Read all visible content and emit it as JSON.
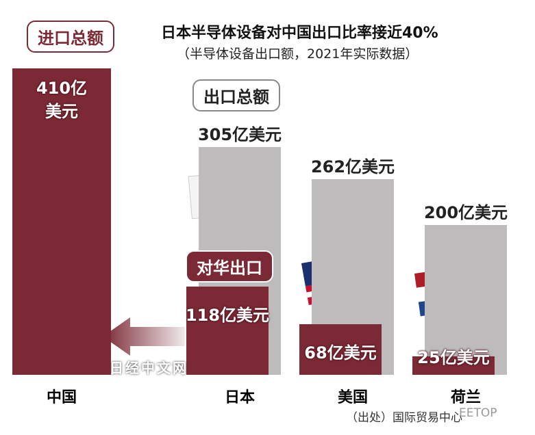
{
  "chart_data": {
    "type": "bar",
    "title": "日本半导体设备对中国出口比率接近40%",
    "subtitle": "（半导体设备出口额，2021年实际数据）",
    "categories": [
      "中国",
      "日本",
      "美国",
      "荷兰"
    ],
    "series": [
      {
        "name": "进口总额",
        "color": "#7b2a35",
        "values": [
          410,
          null,
          null,
          null
        ],
        "value_labels": [
          "410亿美元",
          null,
          null,
          null
        ]
      },
      {
        "name": "出口总额",
        "color": "#bdbbbb",
        "values": [
          null,
          305,
          262,
          200
        ],
        "value_labels": [
          null,
          "305亿美元",
          "262亿美元",
          "200亿美元"
        ]
      },
      {
        "name": "对华出口",
        "color": "#7b2a35",
        "values": [
          null,
          118,
          68,
          25
        ],
        "value_labels": [
          null,
          "118亿美元",
          "68亿美元",
          "25亿美元"
        ]
      }
    ],
    "source": "（出处）国际贸易中心",
    "watermarks": [
      "日经中文网",
      "EETOP"
    ]
  }
}
